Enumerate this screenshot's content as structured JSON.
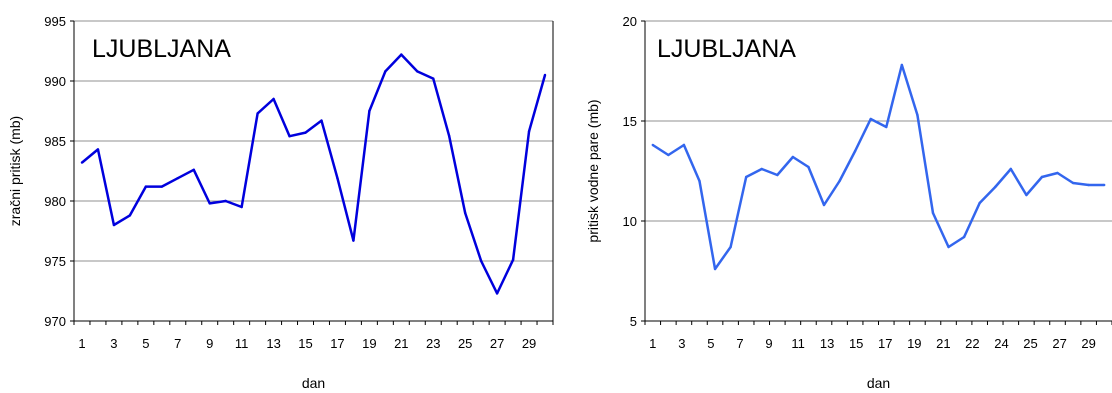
{
  "chart_data": [
    {
      "type": "line",
      "title": "LJUBLJANA",
      "xlabel": "dan",
      "ylabel": "zračni pritisk (mb)",
      "ylim": [
        970,
        995
      ],
      "yticks": [
        "970",
        "975",
        "980",
        "985",
        "990",
        "995"
      ],
      "xticks": [
        "1",
        "3",
        "5",
        "7",
        "9",
        "11",
        "13",
        "15",
        "17",
        "19",
        "21",
        "23",
        "25",
        "27",
        "29"
      ],
      "grid": "horizontal",
      "color": "#0000dd",
      "x": [
        1,
        2,
        3,
        4,
        5,
        6,
        7,
        8,
        9,
        10,
        11,
        12,
        13,
        14,
        15,
        16,
        17,
        18,
        19,
        20,
        21,
        22,
        23,
        24,
        25,
        26,
        27,
        28,
        29,
        30
      ],
      "values": [
        983.2,
        984.3,
        978.0,
        978.8,
        981.2,
        981.2,
        981.9,
        982.6,
        979.8,
        980.0,
        979.5,
        987.3,
        988.5,
        985.4,
        985.7,
        986.7,
        981.9,
        976.7,
        987.5,
        990.8,
        992.2,
        990.8,
        990.2,
        985.4,
        979.0,
        975.0,
        972.3,
        975.1,
        985.8,
        990.5
      ]
    },
    {
      "type": "line",
      "title": "LJUBLJANA",
      "xlabel": "dan",
      "ylabel": "pritisk vodne pare (mb)",
      "ylim": [
        5,
        20
      ],
      "yticks": [
        "5",
        "10",
        "15",
        "20"
      ],
      "xticks": [
        "1",
        "3",
        "5",
        "7",
        "9",
        "11",
        "13",
        "15",
        "17",
        "19",
        "21",
        "22",
        "24",
        "25",
        "27",
        "29"
      ],
      "grid": "horizontal",
      "color": "#3366ee",
      "x": [
        1,
        2,
        3,
        4,
        5,
        6,
        7,
        8,
        9,
        10,
        11,
        12,
        13,
        14,
        15,
        16,
        17,
        18,
        19,
        20,
        21,
        22,
        23,
        24,
        25,
        26,
        27,
        28,
        29,
        30
      ],
      "values": [
        13.8,
        13.3,
        13.8,
        12.0,
        7.6,
        8.7,
        12.2,
        12.6,
        12.3,
        13.2,
        12.7,
        10.8,
        12.0,
        13.5,
        15.1,
        14.7,
        17.8,
        15.3,
        10.4,
        8.7,
        9.2,
        10.9,
        11.7,
        12.6,
        11.3,
        12.2,
        12.4,
        11.9,
        11.8,
        11.8
      ]
    }
  ]
}
